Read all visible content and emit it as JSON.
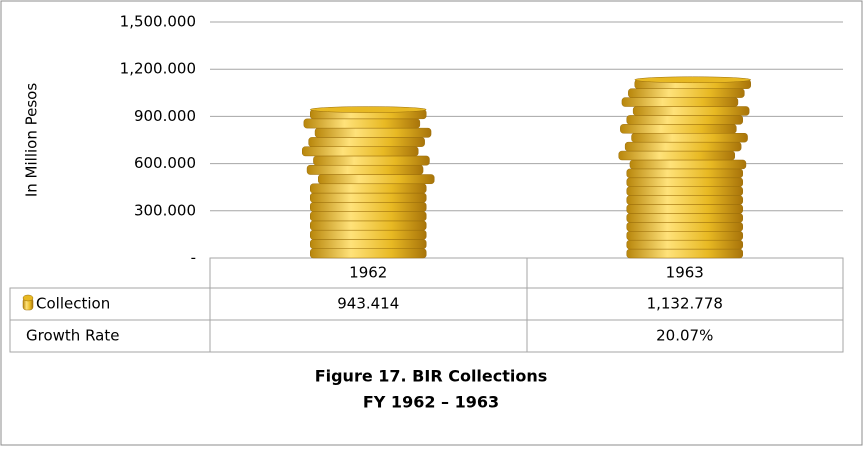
{
  "chart_data": {
    "type": "bar",
    "title": "Figure 17. BIR Collections",
    "subtitle": "FY 1962 – 1963",
    "ylabel": "In Million Pesos",
    "categories": [
      "1962",
      "1963"
    ],
    "series": [
      {
        "name": "Collection",
        "color": "#e8b923",
        "values": [
          943.414,
          1132.778
        ],
        "value_labels": [
          "943.414",
          "1,132.778"
        ]
      }
    ],
    "growth_rate": {
      "name": "Growth Rate",
      "values": [
        null,
        20.07
      ],
      "value_labels": [
        null,
        "20.07%"
      ]
    },
    "ylim": [
      0,
      1500
    ],
    "yticks": [
      {
        "value": 0,
        "label": "-"
      },
      {
        "value": 300,
        "label": "300.000"
      },
      {
        "value": 600,
        "label": "600.000"
      },
      {
        "value": 900,
        "label": "900.000"
      },
      {
        "value": 1200,
        "label": "1,200.000"
      },
      {
        "value": 1500,
        "label": "1,500.000"
      }
    ],
    "grid": true
  }
}
